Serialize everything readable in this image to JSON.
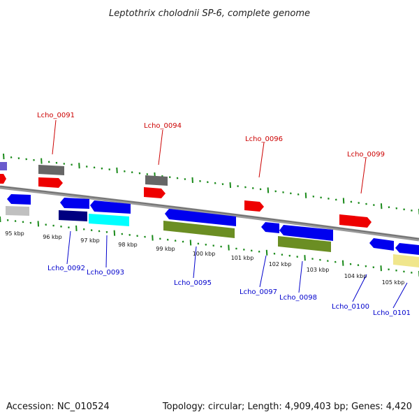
{
  "title": "Leptothrix cholodnii SP-6, complete genome",
  "accession": "Accession: NC_010524",
  "topology": "Topology: circular; Length: 4,909,403 bp; Genes: 4,420",
  "colors": {
    "backbone": "#888888",
    "ticks": "#1a8a1a",
    "label_top": "#cc0000",
    "label_bottom": "#0000cc"
  },
  "ruler_labels": [
    "95 kbp",
    "96 kbp",
    "97 kbp",
    "98 kbp",
    "99 kbp",
    "100 kbp",
    "101 kbp",
    "102 kbp",
    "103 kbp",
    "104 kbp",
    "105 kbp"
  ],
  "gene_labels_top": [
    "Lcho_0091",
    "Lcho_0094",
    "Lcho_0096",
    "Lcho_0099"
  ],
  "gene_labels_bottom": [
    "Lcho_0092",
    "Lcho_0093",
    "Lcho_0095",
    "Lcho_0097",
    "Lcho_0098",
    "Lcho_0100",
    "Lcho_0101"
  ]
}
